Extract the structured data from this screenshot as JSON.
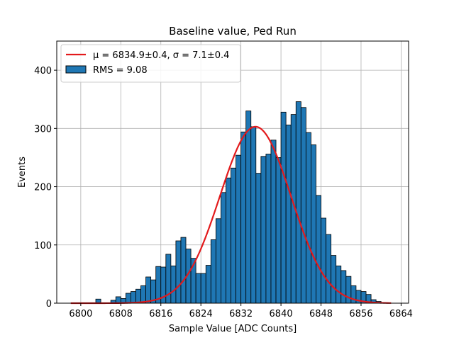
{
  "chart_data": {
    "type": "bar",
    "title": "Baseline value, Ped Run",
    "xlabel": "Sample Value [ADC Counts]",
    "ylabel": "Events",
    "xlim": [
      6795.2,
      6865.5
    ],
    "ylim": [
      0,
      450
    ],
    "xticks": [
      6800,
      6808,
      6816,
      6824,
      6832,
      6840,
      6848,
      6856,
      6864
    ],
    "yticks": [
      0,
      100,
      200,
      300,
      400
    ],
    "grid": true,
    "legend_position": "top-left",
    "histogram": {
      "name": "RMS = 9.08",
      "bin_start": 6798,
      "bin_width": 1,
      "counts": [
        0,
        0,
        0,
        0,
        0,
        7,
        0,
        0,
        5,
        11,
        8,
        17,
        20,
        24,
        30,
        45,
        40,
        63,
        62,
        84,
        64,
        107,
        113,
        93,
        77,
        51,
        51,
        65,
        109,
        145,
        190,
        215,
        232,
        254,
        294,
        330,
        303,
        223,
        252,
        256,
        280,
        250,
        328,
        306,
        324,
        346,
        336,
        293,
        272,
        185,
        146,
        118,
        82,
        64,
        56,
        46,
        30,
        22,
        20,
        15,
        6,
        3,
        1,
        0,
        0,
        0,
        0
      ]
    },
    "fit": {
      "name_mu": "μ = 6834.9±0.4",
      "name_sep": ", ",
      "name_sigma": "σ = 7.1±0.4",
      "mu": 6834.9,
      "sigma": 7.1,
      "amplitude": 303,
      "x_range": [
        6798,
        6862
      ]
    },
    "colors": {
      "bar_fill": "#1f77b4",
      "bar_edge": "#000000",
      "fit_line": "#e31a1c",
      "grid": "#b0b0b0"
    }
  }
}
